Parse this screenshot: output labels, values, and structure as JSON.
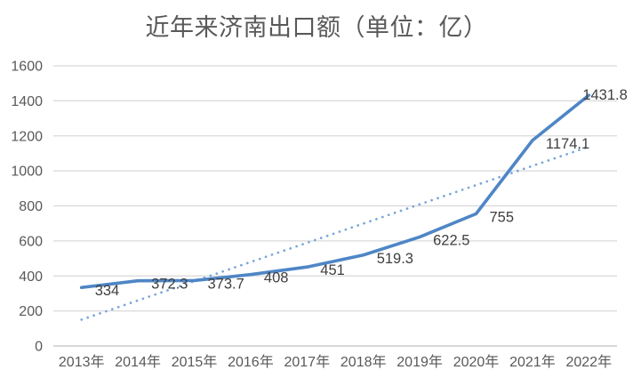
{
  "chart_data": {
    "type": "line",
    "title": "近年来济南出口额（单位：亿）",
    "categories": [
      "2013年",
      "2014年",
      "2015年",
      "2016年",
      "2017年",
      "2018年",
      "2019年",
      "2020年",
      "2021年",
      "2022年"
    ],
    "series": [
      {
        "values": [
          334,
          372.3,
          373.7,
          408,
          451,
          519.3,
          622.5,
          755,
          1174.1,
          1431.8
        ]
      }
    ],
    "data_labels": [
      "334",
      "372.3",
      "373.7",
      "408",
      "451",
      "519.3",
      "622.5",
      "755",
      "1174.1",
      "1431.8"
    ],
    "xlabel": "",
    "ylabel": "",
    "ylim": [
      0,
      1600
    ],
    "y_ticks": [
      0,
      200,
      400,
      600,
      800,
      1000,
      1200,
      1400,
      1600
    ],
    "grid": true,
    "legend": "none",
    "trendline": {
      "type": "linear",
      "style": "dotted"
    },
    "colors": {
      "line": "#4e86c6",
      "trend": "#78a6da",
      "grid": "#d9d9d9",
      "axis": "#bfbfbf",
      "data_label": "#3f3f3f",
      "tick_label": "#595959",
      "title": "#595959"
    }
  }
}
